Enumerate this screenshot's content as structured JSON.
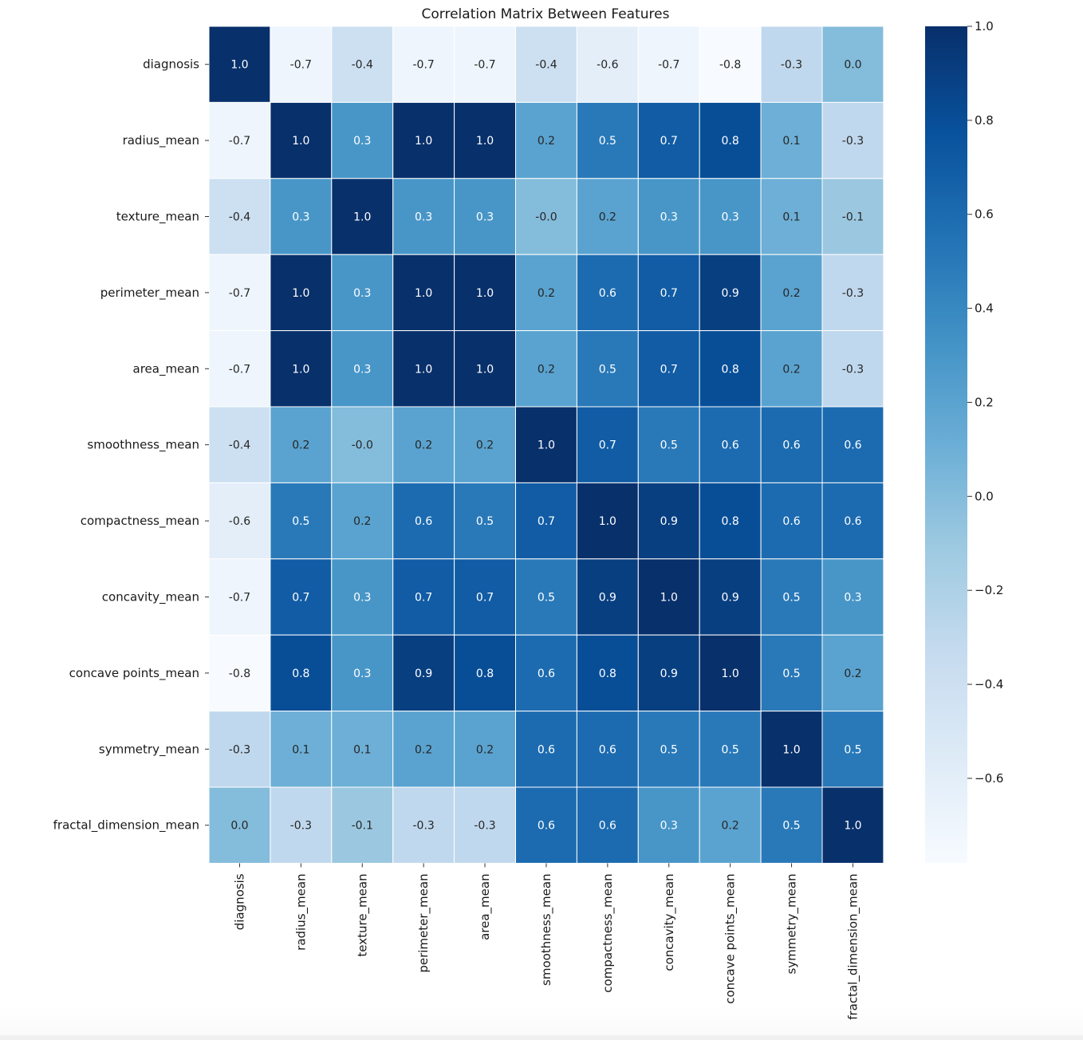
{
  "chart_data": {
    "type": "heatmap",
    "title": "Correlation Matrix Between Features",
    "xlabel": "",
    "ylabel": "",
    "labels": [
      "diagnosis",
      "radius_mean",
      "texture_mean",
      "perimeter_mean",
      "area_mean",
      "smoothness_mean",
      "compactness_mean",
      "concavity_mean",
      "concave points_mean",
      "symmetry_mean",
      "fractal_dimension_mean"
    ],
    "matrix": [
      [
        1.0,
        -0.7,
        -0.4,
        -0.7,
        -0.7,
        -0.4,
        -0.6,
        -0.7,
        -0.8,
        -0.3,
        0.0
      ],
      [
        -0.7,
        1.0,
        0.3,
        1.0,
        1.0,
        0.2,
        0.5,
        0.7,
        0.8,
        0.1,
        -0.3
      ],
      [
        -0.4,
        0.3,
        1.0,
        0.3,
        0.3,
        -0.0,
        0.2,
        0.3,
        0.3,
        0.1,
        -0.1
      ],
      [
        -0.7,
        1.0,
        0.3,
        1.0,
        1.0,
        0.2,
        0.6,
        0.7,
        0.9,
        0.2,
        -0.3
      ],
      [
        -0.7,
        1.0,
        0.3,
        1.0,
        1.0,
        0.2,
        0.5,
        0.7,
        0.8,
        0.2,
        -0.3
      ],
      [
        -0.4,
        0.2,
        -0.0,
        0.2,
        0.2,
        1.0,
        0.7,
        0.5,
        0.6,
        0.6,
        0.6
      ],
      [
        -0.6,
        0.5,
        0.2,
        0.6,
        0.5,
        0.7,
        1.0,
        0.9,
        0.8,
        0.6,
        0.6
      ],
      [
        -0.7,
        0.7,
        0.3,
        0.7,
        0.7,
        0.5,
        0.9,
        1.0,
        0.9,
        0.5,
        0.3
      ],
      [
        -0.8,
        0.8,
        0.3,
        0.9,
        0.8,
        0.6,
        0.8,
        0.9,
        1.0,
        0.5,
        0.2
      ],
      [
        -0.3,
        0.1,
        0.1,
        0.2,
        0.2,
        0.6,
        0.6,
        0.5,
        0.5,
        1.0,
        0.5
      ],
      [
        0.0,
        -0.3,
        -0.1,
        -0.3,
        -0.3,
        0.6,
        0.6,
        0.3,
        0.2,
        0.5,
        1.0
      ]
    ],
    "annotations": [
      [
        "1.0",
        "-0.7",
        "-0.4",
        "-0.7",
        "-0.7",
        "-0.4",
        "-0.6",
        "-0.7",
        "-0.8",
        "-0.3",
        "0.0"
      ],
      [
        "-0.7",
        "1.0",
        "0.3",
        "1.0",
        "1.0",
        "0.2",
        "0.5",
        "0.7",
        "0.8",
        "0.1",
        "-0.3"
      ],
      [
        "-0.4",
        "0.3",
        "1.0",
        "0.3",
        "0.3",
        "-0.0",
        "0.2",
        "0.3",
        "0.3",
        "0.1",
        "-0.1"
      ],
      [
        "-0.7",
        "1.0",
        "0.3",
        "1.0",
        "1.0",
        "0.2",
        "0.6",
        "0.7",
        "0.9",
        "0.2",
        "-0.3"
      ],
      [
        "-0.7",
        "1.0",
        "0.3",
        "1.0",
        "1.0",
        "0.2",
        "0.5",
        "0.7",
        "0.8",
        "0.2",
        "-0.3"
      ],
      [
        "-0.4",
        "0.2",
        "-0.0",
        "0.2",
        "0.2",
        "1.0",
        "0.7",
        "0.5",
        "0.6",
        "0.6",
        "0.6"
      ],
      [
        "-0.6",
        "0.5",
        "0.2",
        "0.6",
        "0.5",
        "0.7",
        "1.0",
        "0.9",
        "0.8",
        "0.6",
        "0.6"
      ],
      [
        "-0.7",
        "0.7",
        "0.3",
        "0.7",
        "0.7",
        "0.5",
        "0.9",
        "1.0",
        "0.9",
        "0.5",
        "0.3"
      ],
      [
        "-0.8",
        "0.8",
        "0.3",
        "0.9",
        "0.8",
        "0.6",
        "0.8",
        "0.9",
        "1.0",
        "0.5",
        "0.2"
      ],
      [
        "-0.3",
        "0.1",
        "0.1",
        "0.2",
        "0.2",
        "0.6",
        "0.6",
        "0.5",
        "0.5",
        "1.0",
        "0.5"
      ],
      [
        "0.0",
        "-0.3",
        "-0.1",
        "-0.3",
        "-0.3",
        "0.6",
        "0.6",
        "0.3",
        "0.2",
        "0.5",
        "1.0"
      ]
    ],
    "colormap": "Blues",
    "vmin": -0.78,
    "vmax": 1.0,
    "colorbar": {
      "position": "right",
      "ticks": [
        1.0,
        0.8,
        0.6,
        0.4,
        0.2,
        0.0,
        -0.2,
        -0.4,
        -0.6
      ],
      "tick_labels": [
        "1.0",
        "0.8",
        "0.6",
        "0.4",
        "0.2",
        "0.0",
        "−0.2",
        "−0.4",
        "−0.6"
      ]
    },
    "grid": false,
    "legend": "none"
  }
}
